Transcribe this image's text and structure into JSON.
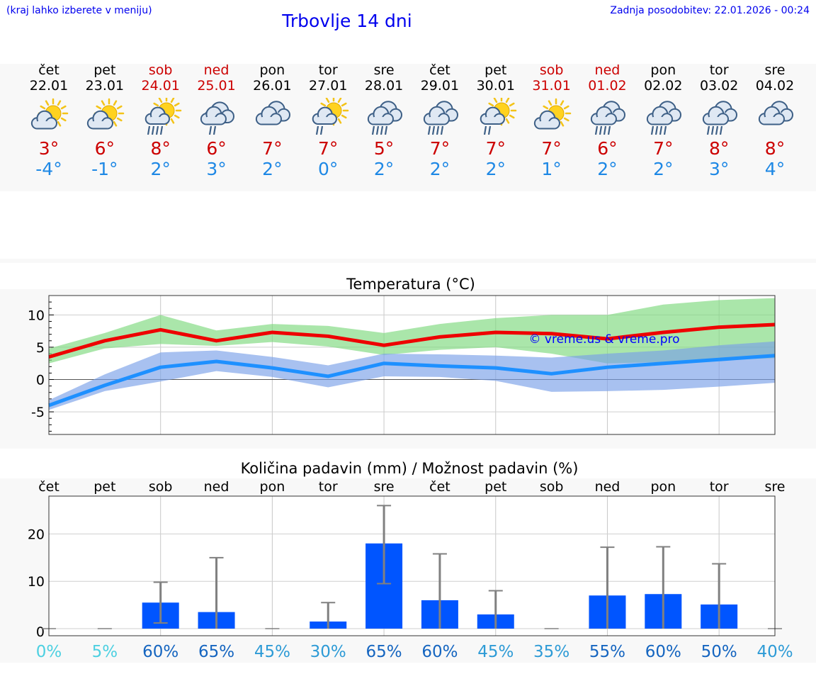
{
  "header": {
    "left_note": "(kraj lahko izberete v meniju)",
    "title": "Trbovlje 14 dni",
    "updated": "Zadnja posodobitev: 22.01.2026 - 00:24"
  },
  "days": [
    {
      "name": "čet",
      "date": "22.01",
      "weekend": false,
      "icon": "partly-cloudy-sun-icon",
      "tmax": "3°",
      "tmin": "-4°"
    },
    {
      "name": "pet",
      "date": "23.01",
      "weekend": false,
      "icon": "partly-cloudy-sun-icon",
      "tmax": "6°",
      "tmin": "-1°"
    },
    {
      "name": "sob",
      "date": "24.01",
      "weekend": true,
      "icon": "sun-cloud-rain-icon",
      "tmax": "8°",
      "tmin": "2°"
    },
    {
      "name": "ned",
      "date": "25.01",
      "weekend": true,
      "icon": "cloud-light-rain-icon",
      "tmax": "6°",
      "tmin": "3°"
    },
    {
      "name": "pon",
      "date": "26.01",
      "weekend": false,
      "icon": "cloudy-icon",
      "tmax": "7°",
      "tmin": "2°"
    },
    {
      "name": "tor",
      "date": "27.01",
      "weekend": false,
      "icon": "sun-cloud-light-rain-icon",
      "tmax": "7°",
      "tmin": "0°"
    },
    {
      "name": "sre",
      "date": "28.01",
      "weekend": false,
      "icon": "cloud-rain-icon",
      "tmax": "5°",
      "tmin": "2°"
    },
    {
      "name": "čet",
      "date": "29.01",
      "weekend": false,
      "icon": "cloud-rain-icon",
      "tmax": "7°",
      "tmin": "2°"
    },
    {
      "name": "pet",
      "date": "30.01",
      "weekend": false,
      "icon": "sun-cloud-light-rain-icon",
      "tmax": "7°",
      "tmin": "2°"
    },
    {
      "name": "sob",
      "date": "31.01",
      "weekend": true,
      "icon": "partly-cloudy-sun-icon",
      "tmax": "7°",
      "tmin": "1°"
    },
    {
      "name": "ned",
      "date": "01.02",
      "weekend": true,
      "icon": "cloud-rain-icon",
      "tmax": "6°",
      "tmin": "2°"
    },
    {
      "name": "pon",
      "date": "02.02",
      "weekend": false,
      "icon": "cloud-rain-icon",
      "tmax": "7°",
      "tmin": "2°"
    },
    {
      "name": "tor",
      "date": "03.02",
      "weekend": false,
      "icon": "cloud-rain-icon",
      "tmax": "8°",
      "tmin": "3°"
    },
    {
      "name": "sre",
      "date": "04.02",
      "weekend": false,
      "icon": "cloudy-icon",
      "tmax": "8°",
      "tmin": "4°"
    }
  ],
  "colors": {
    "max_line": "#ee0000",
    "max_band": "#7dd87d",
    "min_line": "#1e90ff",
    "min_band": "#7a9fe8",
    "bar": "#0055ff",
    "errbar": "#808080",
    "weekend": "#cc0000",
    "min_text": "#1e88e5"
  },
  "chart_data": [
    {
      "type": "line",
      "title": "Temperatura (°C)",
      "watermark": "© vreme.us & vreme.pro",
      "x": [
        0,
        1,
        2,
        3,
        4,
        5,
        6,
        7,
        8,
        9,
        10,
        11,
        12,
        13
      ],
      "ylim": [
        -8.5,
        13
      ],
      "yticks": [
        -5,
        0,
        5,
        10
      ],
      "grid": true,
      "series": [
        {
          "name": "max",
          "values": [
            3.5,
            6,
            7.7,
            6,
            7.3,
            6.7,
            5.3,
            6.6,
            7.3,
            7.1,
            6.3,
            7.3,
            8.1,
            8.5
          ],
          "band_low": [
            2.5,
            4.8,
            5.5,
            5.2,
            5.8,
            5.1,
            3.8,
            4.6,
            5.0,
            4.0,
            2.5,
            2.7,
            3.0,
            3.3
          ],
          "band_high": [
            4.8,
            7.2,
            10.0,
            7.6,
            8.6,
            8.3,
            7.2,
            8.6,
            9.5,
            10.0,
            10.0,
            11.6,
            12.3,
            12.6
          ]
        },
        {
          "name": "min",
          "values": [
            -4,
            -0.9,
            1.9,
            2.8,
            1.8,
            0.5,
            2.5,
            2.1,
            1.8,
            0.9,
            1.9,
            2.5,
            3.1,
            3.7
          ],
          "band_low": [
            -4.7,
            -1.8,
            -0.3,
            1.3,
            0.4,
            -1.2,
            0.5,
            0.4,
            -0.2,
            -1.9,
            -1.8,
            -1.6,
            -1.1,
            -0.5
          ],
          "band_high": [
            -3.2,
            0.8,
            4.2,
            4.5,
            3.5,
            2.2,
            4.0,
            3.9,
            3.7,
            3.4,
            4.0,
            4.5,
            5.3,
            5.9
          ]
        }
      ]
    },
    {
      "type": "bar",
      "title": "Količina padavin (mm) / Možnost padavin (%)",
      "categories": [
        "čet",
        "pet",
        "sob",
        "ned",
        "pon",
        "tor",
        "sre",
        "čet",
        "pet",
        "sob",
        "ned",
        "pon",
        "tor",
        "sre"
      ],
      "values": [
        0,
        0,
        5.5,
        3.5,
        0,
        1.5,
        18,
        6,
        3,
        0,
        7,
        7.3,
        5.1,
        0
      ],
      "err_low": [
        0,
        0,
        1.2,
        0,
        0,
        0,
        9.5,
        0,
        0,
        0,
        0,
        0,
        0,
        0
      ],
      "err_high": [
        0,
        0,
        9.8,
        15,
        0,
        5.5,
        26,
        15.8,
        8,
        0,
        17.2,
        17.3,
        13.7,
        0
      ],
      "chance": [
        "0%",
        "5%",
        "60%",
        "65%",
        "45%",
        "30%",
        "65%",
        "60%",
        "45%",
        "35%",
        "55%",
        "60%",
        "50%",
        "40%"
      ],
      "chance_values": [
        0,
        5,
        60,
        65,
        45,
        30,
        65,
        60,
        45,
        35,
        55,
        60,
        50,
        40
      ],
      "ylim": [
        -1.5,
        28
      ],
      "yticks": [
        0,
        10,
        20
      ],
      "grid": true
    }
  ]
}
